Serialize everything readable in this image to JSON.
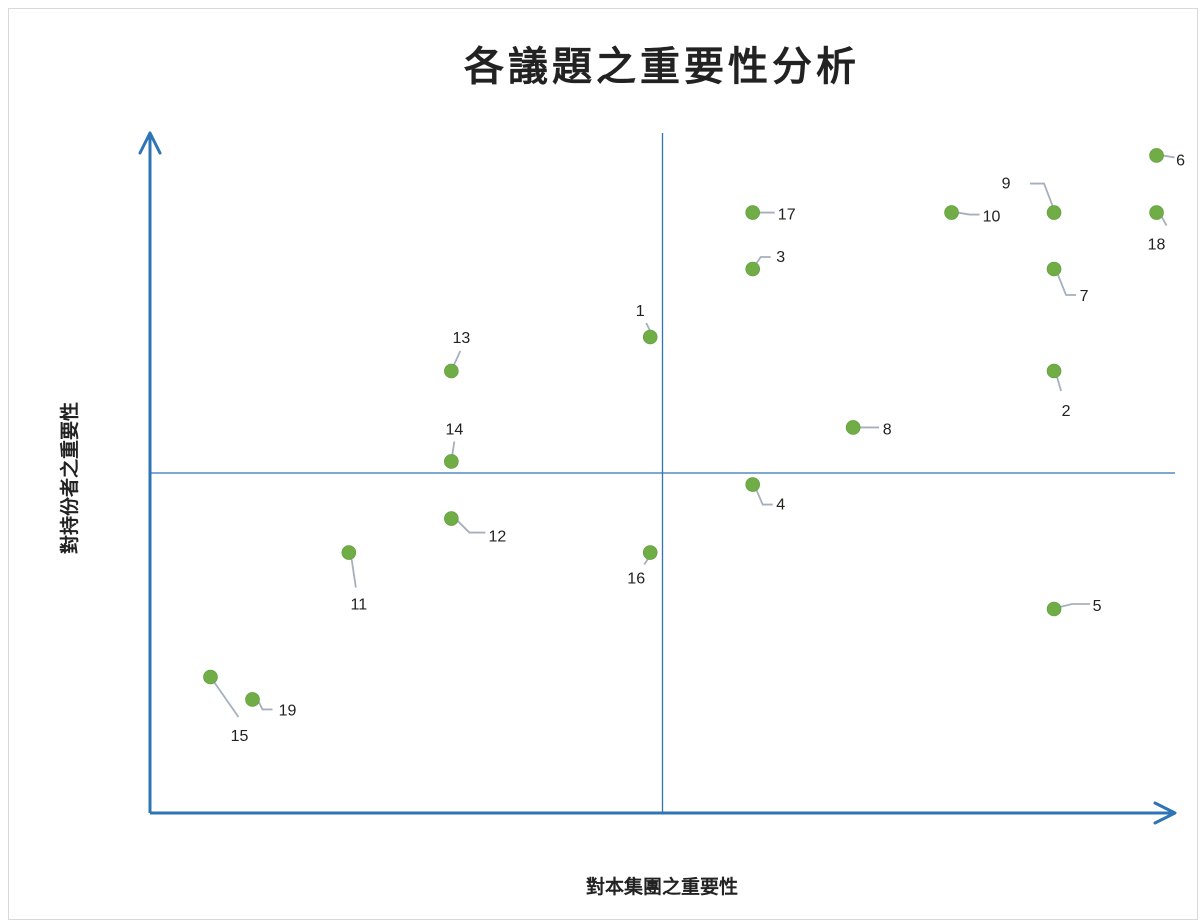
{
  "chart_data": {
    "type": "scatter",
    "title": "各議題之重要性分析",
    "xlabel": "對本集團之重要性",
    "ylabel": "對持份者之重要性",
    "xlim": [
      0,
      10
    ],
    "ylim": [
      0,
      10
    ],
    "divider": {
      "x": 5.0,
      "y": 5.0
    },
    "grid": false,
    "colors": {
      "axis": "#2e75b6",
      "point": "#70ad47",
      "divider": "#2e75b6",
      "leader": "#a6b0bc"
    },
    "points": [
      {
        "label": "1",
        "x": 4.88,
        "y": 7.0
      },
      {
        "label": "2",
        "x": 8.82,
        "y": 6.5
      },
      {
        "label": "3",
        "x": 5.88,
        "y": 8.0
      },
      {
        "label": "4",
        "x": 5.88,
        "y": 4.83
      },
      {
        "label": "5",
        "x": 8.82,
        "y": 3.0
      },
      {
        "label": "6",
        "x": 9.82,
        "y": 9.67
      },
      {
        "label": "7",
        "x": 8.82,
        "y": 8.0
      },
      {
        "label": "8",
        "x": 6.86,
        "y": 5.67
      },
      {
        "label": "9",
        "x": 8.82,
        "y": 8.83
      },
      {
        "label": "10",
        "x": 7.82,
        "y": 8.83
      },
      {
        "label": "11",
        "x": 1.94,
        "y": 3.83
      },
      {
        "label": "12",
        "x": 2.94,
        "y": 4.33
      },
      {
        "label": "13",
        "x": 2.94,
        "y": 6.5
      },
      {
        "label": "14",
        "x": 2.94,
        "y": 5.17
      },
      {
        "label": "15",
        "x": 0.59,
        "y": 2.0
      },
      {
        "label": "16",
        "x": 4.88,
        "y": 3.83
      },
      {
        "label": "17",
        "x": 5.88,
        "y": 8.83
      },
      {
        "label": "18",
        "x": 9.82,
        "y": 8.83
      },
      {
        "label": "19",
        "x": 1.0,
        "y": 1.67
      }
    ]
  }
}
